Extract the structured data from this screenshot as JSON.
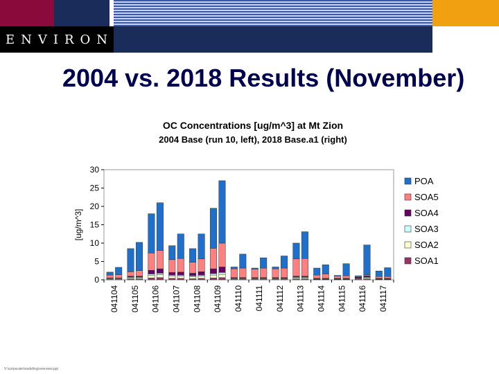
{
  "header": {
    "logo_text": "ENVIRON"
  },
  "slide_title": "2004 vs. 2018 Results (November)",
  "footer": {
    "path": "V:\\corporate\\modeling\\overview.ppt"
  },
  "chart_data": {
    "type": "bar",
    "stacked": true,
    "title": "OC Concentrations  [ug/m^3] at Mt Zion",
    "subtitle": "2004 Base (run 10, left), 2018 Base.a1 (right)",
    "ylabel": "[ug/m^3]",
    "ylim": [
      0,
      30
    ],
    "yticks": [
      0,
      5,
      10,
      15,
      20,
      25,
      30
    ],
    "categories": [
      "041104",
      "041105",
      "041106",
      "041107",
      "041108",
      "041109",
      "041110",
      "041111",
      "041112",
      "041113",
      "041114",
      "041115",
      "041116",
      "041117"
    ],
    "bars_per_category": [
      "2004 Base",
      "2018 Base.a1"
    ],
    "legend_position": "right",
    "series": [
      {
        "name": "SOA1",
        "color": "#993366",
        "values": [
          [
            0.1,
            0.1
          ],
          [
            0.2,
            0.2
          ],
          [
            0.5,
            0.6
          ],
          [
            0.4,
            0.4
          ],
          [
            0.3,
            0.4
          ],
          [
            0.5,
            0.6
          ],
          [
            0.1,
            0.1
          ],
          [
            0.1,
            0.1
          ],
          [
            0.1,
            0.1
          ],
          [
            0.2,
            0.2
          ],
          [
            0.1,
            0.1
          ],
          [
            0.1,
            0.1
          ],
          [
            0.1,
            0.2
          ],
          [
            0.1,
            0.1
          ]
        ]
      },
      {
        "name": "SOA2",
        "color": "#FFFFCC",
        "values": [
          [
            0.2,
            0.2
          ],
          [
            0.3,
            0.3
          ],
          [
            0.7,
            0.8
          ],
          [
            0.6,
            0.6
          ],
          [
            0.5,
            0.6
          ],
          [
            0.8,
            0.9
          ],
          [
            0.2,
            0.2
          ],
          [
            0.2,
            0.2
          ],
          [
            0.2,
            0.2
          ],
          [
            0.3,
            0.3
          ],
          [
            0.1,
            0.1
          ],
          [
            0.1,
            0.1
          ],
          [
            0.2,
            0.3
          ],
          [
            0.1,
            0.1
          ]
        ]
      },
      {
        "name": "SOA3",
        "color": "#CCFFFF",
        "values": [
          [
            0.1,
            0.1
          ],
          [
            0.2,
            0.2
          ],
          [
            0.4,
            0.4
          ],
          [
            0.3,
            0.3
          ],
          [
            0.3,
            0.3
          ],
          [
            0.4,
            0.5
          ],
          [
            0.1,
            0.1
          ],
          [
            0.1,
            0.1
          ],
          [
            0.1,
            0.1
          ],
          [
            0.2,
            0.2
          ],
          [
            0.1,
            0.1
          ],
          [
            0.1,
            0.1
          ],
          [
            0.1,
            0.2
          ],
          [
            0.1,
            0.1
          ]
        ]
      },
      {
        "name": "SOA4",
        "color": "#660066",
        "values": [
          [
            0.1,
            0.1
          ],
          [
            0.3,
            0.3
          ],
          [
            1.0,
            1.2
          ],
          [
            0.7,
            0.8
          ],
          [
            0.7,
            0.9
          ],
          [
            1.3,
            1.5
          ],
          [
            0.2,
            0.2
          ],
          [
            0.2,
            0.2
          ],
          [
            0.2,
            0.2
          ],
          [
            0.3,
            0.3
          ],
          [
            0.1,
            0.1
          ],
          [
            0.1,
            0.1
          ],
          [
            0.3,
            0.4
          ],
          [
            0.1,
            0.1
          ]
        ]
      },
      {
        "name": "SOA5",
        "color": "#FF8080",
        "values": [
          [
            0.8,
            0.9
          ],
          [
            1.2,
            1.5
          ],
          [
            4.7,
            5.0
          ],
          [
            3.5,
            3.7
          ],
          [
            3.0,
            3.5
          ],
          [
            5.6,
            6.5
          ],
          [
            2.4,
            2.6
          ],
          [
            2.3,
            2.6
          ],
          [
            2.4,
            2.6
          ],
          [
            4.7,
            4.8
          ],
          [
            0.9,
            1.2
          ],
          [
            0.6,
            0.7
          ],
          [
            0.2,
            0.3
          ],
          [
            0.5,
            0.5
          ]
        ]
      },
      {
        "name": "POA",
        "color": "#1F6FCC",
        "values": [
          [
            0.8,
            2.0
          ],
          [
            6.3,
            7.7
          ],
          [
            10.7,
            13.0
          ],
          [
            3.8,
            6.7
          ],
          [
            3.7,
            6.8
          ],
          [
            10.9,
            17.0
          ],
          [
            0.5,
            3.8
          ],
          [
            0.3,
            2.8
          ],
          [
            0.5,
            3.3
          ],
          [
            4.3,
            7.3
          ],
          [
            1.9,
            2.5
          ],
          [
            0.2,
            3.3
          ],
          [
            0.2,
            8.1
          ],
          [
            1.5,
            2.4
          ]
        ]
      }
    ],
    "legend_order": [
      "POA",
      "SOA5",
      "SOA4",
      "SOA3",
      "SOA2",
      "SOA1"
    ]
  }
}
